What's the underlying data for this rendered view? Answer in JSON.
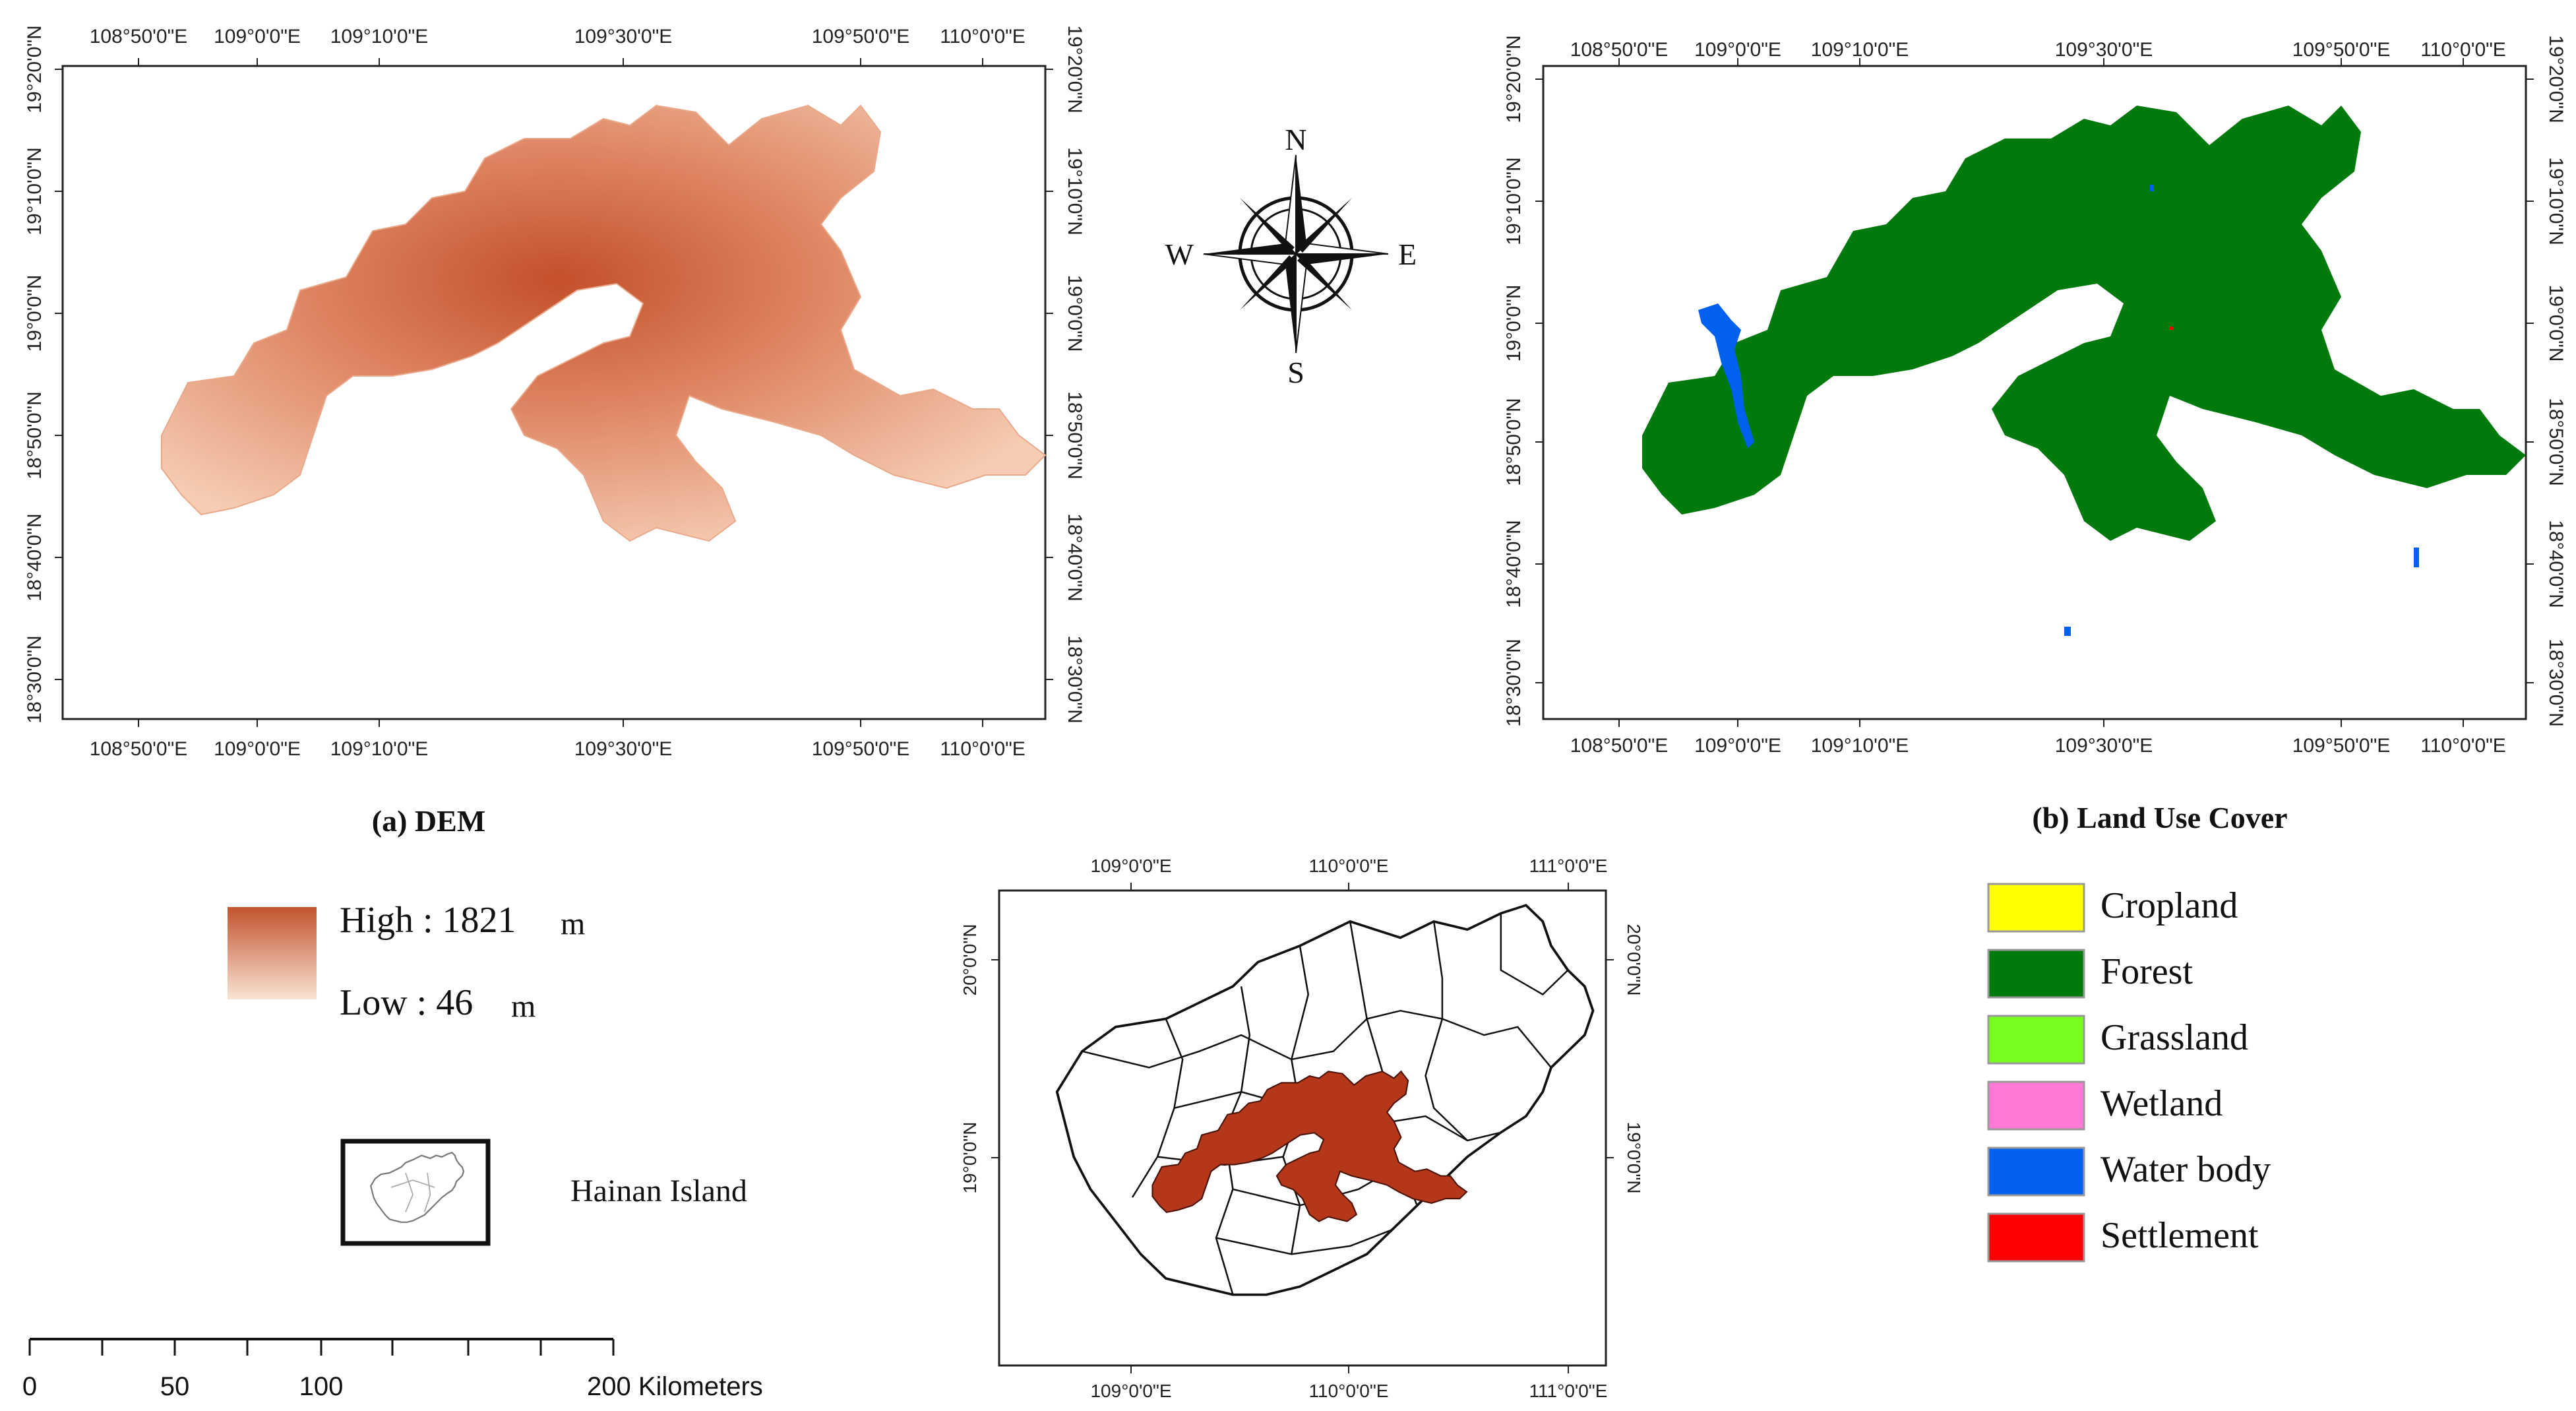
{
  "panels": {
    "dem": {
      "caption": "(a) DEM",
      "lon_labels": [
        "108°50'0\"E",
        "109°0'0\"E",
        "109°10'0\"E",
        "109°30'0\"E",
        "109°50'0\"E",
        "110°0'0\"E"
      ],
      "lat_labels": [
        "19°20'0\"N",
        "19°10'0\"N",
        "19°0'0\"N",
        "18°50'0\"N",
        "18°40'0\"N",
        "18°30'0\"N"
      ],
      "legend": {
        "high": "High : 1821",
        "low": "Low : 46",
        "unit": "m",
        "high_color": "#c2532e",
        "low_color": "#f9e3d2"
      }
    },
    "landuse": {
      "caption": "(b) Land Use Cover",
      "lon_labels": [
        "108°50'0\"E",
        "109°0'0\"E",
        "109°10'0\"E",
        "109°30'0\"E",
        "109°50'0\"E",
        "110°0'0\"E"
      ],
      "lat_labels": [
        "19°20'0\"N",
        "19°10'0\"N",
        "19°0'0\"N",
        "18°50'0\"N",
        "18°40'0\"N",
        "18°30'0\"N"
      ],
      "legend": [
        {
          "label": "Cropland",
          "color": "#ffff00"
        },
        {
          "label": "Forest",
          "color": "#007a0c"
        },
        {
          "label": "Grassland",
          "color": "#76ff1f"
        },
        {
          "label": "Wetland",
          "color": "#ff79d6"
        },
        {
          "label": "Water body",
          "color": "#0060f0"
        },
        {
          "label": "Settlement",
          "color": "#ff0000"
        }
      ]
    },
    "locator": {
      "lon_labels": [
        "109°0'0\"E",
        "110°0'0\"E",
        "111°0'0\"E"
      ],
      "lat_labels": [
        "20°0'0\"N",
        "19°0'0\"N"
      ],
      "region_color": "#b5371a"
    }
  },
  "compass": {
    "n": "N",
    "s": "S",
    "e": "E",
    "w": "W"
  },
  "inset": {
    "label": "Hainan Island"
  },
  "scalebar": {
    "labels": [
      "0",
      "50",
      "100",
      "200 Kilometers"
    ]
  }
}
